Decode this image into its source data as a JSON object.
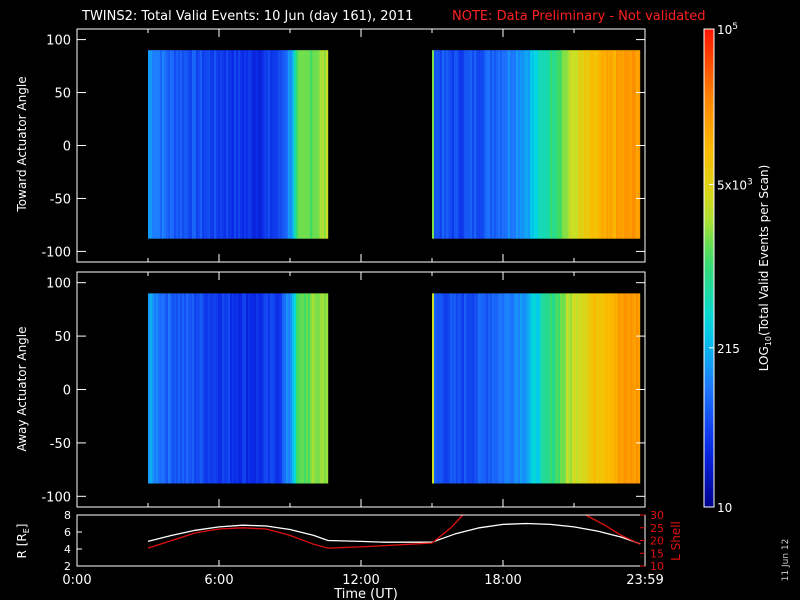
{
  "header": {
    "title": "TWINS2: Total Valid Events: 10 Jun (day 161), 2011",
    "note": "NOTE: Data Preliminary - Not validated"
  },
  "colors": {
    "background": "#000000",
    "axes": "#ffffff",
    "note": "#ff2020",
    "r_line": "#ffffff",
    "lshell_line": "#e01010"
  },
  "chart_data": [
    {
      "type": "heatmap",
      "name": "toward",
      "ylabel": "Toward Actuator Angle",
      "ylim": [
        -110,
        110
      ],
      "y_ticks": [
        100,
        50,
        0,
        -50,
        -100
      ],
      "y_tick_labels": [
        "100",
        "50",
        "0",
        "-50",
        "-100"
      ],
      "x_range_hours": [
        0,
        24
      ],
      "blocks": [
        {
          "start": 3.0,
          "end": 10.6,
          "angle_min": -88,
          "angle_max": 90
        },
        {
          "start": 15.0,
          "end": 23.8,
          "angle_min": -88,
          "angle_max": 90
        }
      ],
      "profile": [
        {
          "t": 3.0,
          "v": 0.3
        },
        {
          "t": 3.8,
          "v": 0.22
        },
        {
          "t": 4.5,
          "v": 0.2
        },
        {
          "t": 5.5,
          "v": 0.17
        },
        {
          "t": 6.5,
          "v": 0.15
        },
        {
          "t": 7.5,
          "v": 0.13
        },
        {
          "t": 8.5,
          "v": 0.16
        },
        {
          "t": 9.0,
          "v": 0.3
        },
        {
          "t": 9.3,
          "v": 0.52
        },
        {
          "t": 10.2,
          "v": 0.58
        },
        {
          "t": 10.6,
          "v": 0.6
        },
        {
          "t": 15.0,
          "v": 0.2
        },
        {
          "t": 16.0,
          "v": 0.17
        },
        {
          "t": 17.0,
          "v": 0.2
        },
        {
          "t": 18.0,
          "v": 0.25
        },
        {
          "t": 19.0,
          "v": 0.32
        },
        {
          "t": 19.6,
          "v": 0.42
        },
        {
          "t": 20.4,
          "v": 0.55
        },
        {
          "t": 21.2,
          "v": 0.66
        },
        {
          "t": 22.0,
          "v": 0.74
        },
        {
          "t": 23.0,
          "v": 0.8
        },
        {
          "t": 23.8,
          "v": 0.82
        }
      ]
    },
    {
      "type": "heatmap",
      "name": "away",
      "ylabel": "Away Actuator Angle",
      "ylim": [
        -110,
        110
      ],
      "y_ticks": [
        100,
        50,
        0,
        -50,
        -100
      ],
      "y_tick_labels": [
        "100",
        "50",
        "0",
        "-50",
        "-100"
      ],
      "x_range_hours": [
        0,
        24
      ],
      "blocks": [
        {
          "start": 3.0,
          "end": 10.6,
          "angle_min": -88,
          "angle_max": 90
        },
        {
          "start": 15.0,
          "end": 23.8,
          "angle_min": -88,
          "angle_max": 90
        }
      ],
      "profile": [
        {
          "t": 3.0,
          "v": 0.3
        },
        {
          "t": 3.8,
          "v": 0.22
        },
        {
          "t": 4.5,
          "v": 0.2
        },
        {
          "t": 5.5,
          "v": 0.17
        },
        {
          "t": 6.5,
          "v": 0.15
        },
        {
          "t": 7.5,
          "v": 0.13
        },
        {
          "t": 8.5,
          "v": 0.16
        },
        {
          "t": 9.0,
          "v": 0.3
        },
        {
          "t": 9.3,
          "v": 0.52
        },
        {
          "t": 10.2,
          "v": 0.58
        },
        {
          "t": 10.6,
          "v": 0.6
        },
        {
          "t": 15.0,
          "v": 0.2
        },
        {
          "t": 16.0,
          "v": 0.17
        },
        {
          "t": 17.0,
          "v": 0.2
        },
        {
          "t": 18.0,
          "v": 0.25
        },
        {
          "t": 19.0,
          "v": 0.32
        },
        {
          "t": 19.6,
          "v": 0.42
        },
        {
          "t": 20.4,
          "v": 0.55
        },
        {
          "t": 21.2,
          "v": 0.66
        },
        {
          "t": 22.0,
          "v": 0.74
        },
        {
          "t": 23.0,
          "v": 0.8
        },
        {
          "t": 23.8,
          "v": 0.82
        }
      ]
    },
    {
      "type": "line",
      "name": "orbit",
      "ylabel_left": "R [RE]",
      "ylabel_right": "L Shell",
      "ylim_left": [
        2,
        8
      ],
      "y_ticks_left": [
        8,
        6,
        4,
        2
      ],
      "ylim_right": [
        10,
        30
      ],
      "y_ticks_right": [
        30,
        25,
        20,
        15,
        10
      ],
      "xlabel": "Time (UT)",
      "x_ticks_hours": [
        0,
        6,
        12,
        18,
        24
      ],
      "x_tick_labels": [
        "0:00",
        "6:00",
        "12:00",
        "18:00",
        "23:59"
      ],
      "series": [
        {
          "axis": "left",
          "color": "#ffffff",
          "points": [
            [
              3.0,
              4.9
            ],
            [
              4.0,
              5.6
            ],
            [
              5.0,
              6.2
            ],
            [
              6.0,
              6.6
            ],
            [
              7.0,
              6.8
            ],
            [
              8.0,
              6.7
            ],
            [
              9.0,
              6.3
            ],
            [
              10.0,
              5.6
            ],
            [
              10.6,
              5.0
            ],
            [
              12.0,
              4.9
            ],
            [
              13.0,
              4.8
            ],
            [
              14.0,
              4.8
            ],
            [
              15.0,
              4.8
            ],
            [
              16.0,
              5.8
            ],
            [
              17.0,
              6.5
            ],
            [
              18.0,
              6.9
            ],
            [
              19.0,
              7.0
            ],
            [
              20.0,
              6.9
            ],
            [
              21.0,
              6.6
            ],
            [
              22.0,
              6.1
            ],
            [
              23.0,
              5.4
            ],
            [
              23.8,
              4.6
            ]
          ]
        },
        {
          "axis": "right",
          "color": "#e01010",
          "points": [
            [
              3.0,
              17.0
            ],
            [
              4.0,
              20.0
            ],
            [
              5.0,
              23.0
            ],
            [
              6.0,
              24.5
            ],
            [
              7.0,
              25.0
            ],
            [
              8.0,
              24.5
            ],
            [
              9.0,
              22.0
            ],
            [
              10.0,
              18.5
            ],
            [
              10.6,
              17.0
            ],
            [
              12.0,
              17.5
            ],
            [
              13.0,
              18.0
            ],
            [
              14.0,
              18.5
            ],
            [
              15.0,
              19.0
            ],
            [
              15.8,
              25.0
            ],
            [
              16.3,
              31.0
            ]
          ]
        },
        {
          "axis": "right",
          "color": "#e01010",
          "points": [
            [
              21.5,
              31.0
            ],
            [
              22.3,
              26.0
            ],
            [
              23.0,
              22.0
            ],
            [
              23.8,
              18.5
            ]
          ]
        }
      ]
    }
  ],
  "colorbar": {
    "label": "LOG10(Total Valid Events per Scan)",
    "label_main": "LOG",
    "label_sub": "10",
    "label_rest": "(Total Valid Events per Scan)",
    "scale": "log",
    "range": [
      10,
      100000
    ],
    "ticks": [
      {
        "value": 100000,
        "base": "10",
        "exp": "5"
      },
      {
        "value": 5000,
        "base": "5x10",
        "exp": "3"
      },
      {
        "value": 215,
        "base": "215",
        "exp": ""
      },
      {
        "value": 10,
        "base": "10",
        "exp": ""
      }
    ]
  },
  "footer": {
    "xlabel_main": "Time (UT)",
    "date_stamp": "11 Jun 12",
    "r_label_main": "R [R",
    "r_label_sub": "E",
    "r_label_end": "]"
  }
}
